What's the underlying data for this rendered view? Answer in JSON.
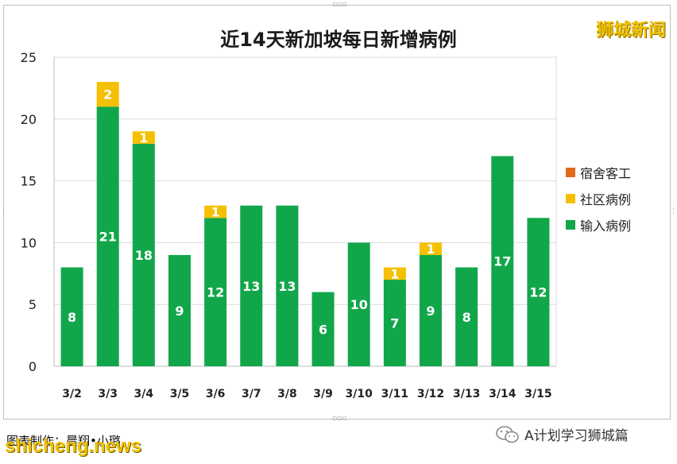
{
  "brand": "狮城新闻",
  "chart_data": {
    "type": "bar",
    "stacked": true,
    "title": "近14天新加坡每日新增病例",
    "categories": [
      "3/2",
      "3/3",
      "3/4",
      "3/5",
      "3/6",
      "3/7",
      "3/8",
      "3/9",
      "3/10",
      "3/11",
      "3/12",
      "3/13",
      "3/14",
      "3/15"
    ],
    "series": [
      {
        "name": "输入病例",
        "color": "#12a64a",
        "values": [
          8,
          21,
          18,
          9,
          12,
          13,
          13,
          6,
          10,
          7,
          9,
          8,
          17,
          12
        ]
      },
      {
        "name": "社区病例",
        "color": "#f5c000",
        "values": [
          0,
          2,
          1,
          0,
          1,
          0,
          0,
          0,
          0,
          1,
          1,
          0,
          0,
          0
        ]
      },
      {
        "name": "宿舍客工",
        "color": "#e06a1b",
        "values": [
          0,
          0,
          0,
          0,
          0,
          0,
          0,
          0,
          0,
          0,
          0,
          0,
          0,
          0
        ]
      }
    ],
    "yticks": [
      0,
      5,
      10,
      15,
      20,
      25
    ],
    "ylim": [
      0,
      25
    ],
    "grid": true,
    "legend_position": "right"
  },
  "legend": [
    "宿舍客工",
    "社区病例",
    "输入病例"
  ],
  "caption": "图表制作：晨翔•小璐",
  "watermark": "shicheng.news",
  "wechat_account": "A计划学习狮城篇",
  "icons": {
    "wechat": "wechat-icon"
  }
}
